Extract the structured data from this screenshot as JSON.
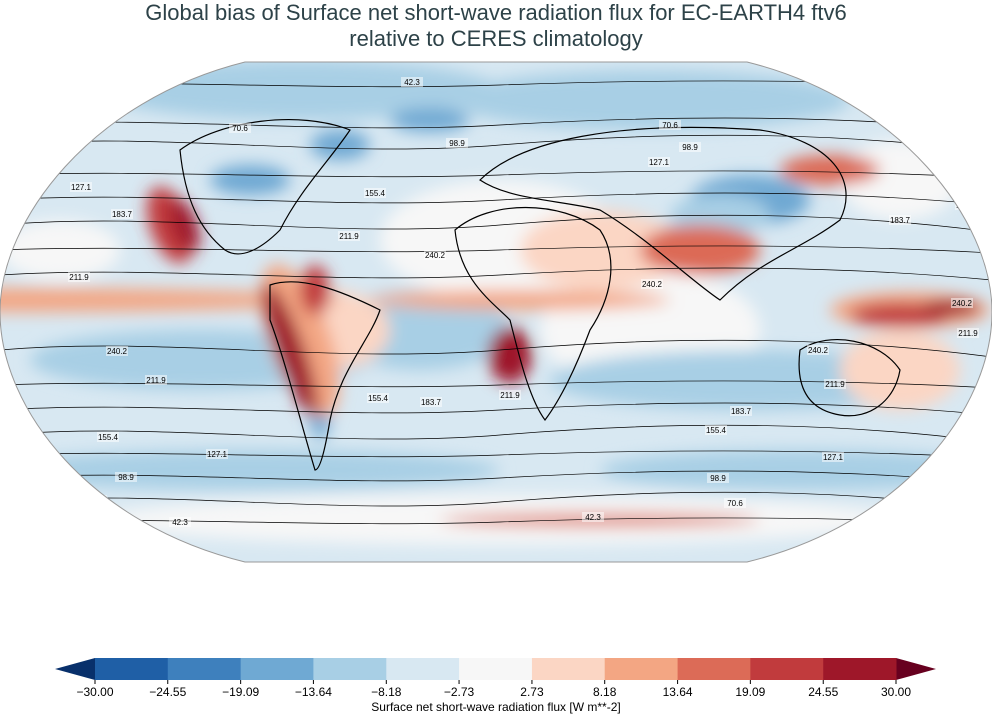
{
  "title": [
    "Global bias of Surface net short-wave radiation flux for EC-EARTH4 ftv6",
    "relative to CERES climatology"
  ],
  "colorbar": {
    "label": "Surface net short-wave radiation flux [W m**-2]",
    "ticks": [
      {
        "value": -30,
        "label": "−30.00"
      },
      {
        "value": -24.55,
        "label": "−24.55"
      },
      {
        "value": -19.09,
        "label": "−19.09"
      },
      {
        "value": -13.64,
        "label": "−13.64"
      },
      {
        "value": -8.18,
        "label": "−8.18"
      },
      {
        "value": -2.73,
        "label": "−2.73"
      },
      {
        "value": 2.73,
        "label": "2.73"
      },
      {
        "value": 8.18,
        "label": "8.18"
      },
      {
        "value": 13.64,
        "label": "13.64"
      },
      {
        "value": 19.09,
        "label": "19.09"
      },
      {
        "value": 24.55,
        "label": "24.55"
      },
      {
        "value": 30,
        "label": "30.00"
      }
    ],
    "colors": [
      "#1f5fa6",
      "#3e80bd",
      "#6fa9d3",
      "#a8cfe5",
      "#d8e8f2",
      "#f7f7f7",
      "#fbd6c4",
      "#f3a683",
      "#dc6b57",
      "#c13b3d",
      "#9e1729"
    ],
    "under_color": "#08306b",
    "over_color": "#67001f"
  },
  "contour_levels": [
    42.3,
    70.6,
    98.9,
    127.1,
    155.4,
    183.7,
    211.9,
    240.2
  ]
}
